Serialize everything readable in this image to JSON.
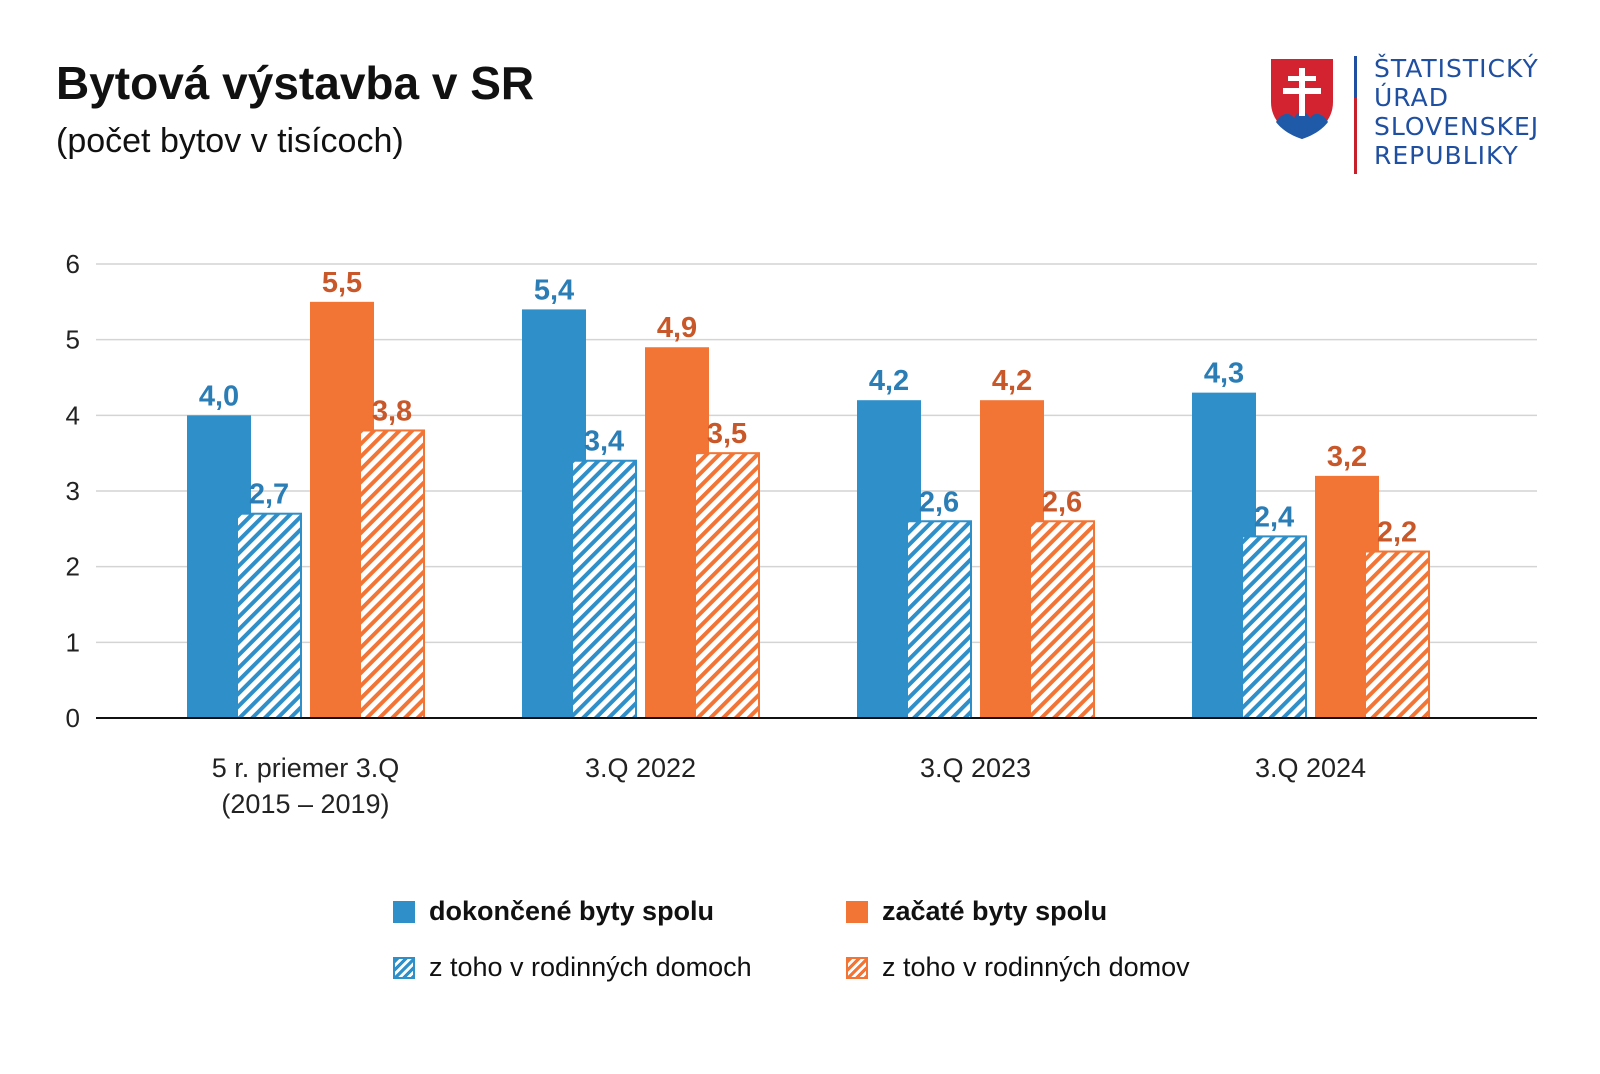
{
  "header": {
    "title": "Bytová výstavba v SR",
    "subtitle": "(počet bytov v tisícoch)"
  },
  "logo": {
    "lines": [
      "ŠTATISTICKÝ",
      "ÚRAD",
      "SLOVENSKEJ",
      "REPUBLIKY"
    ],
    "emblem": "slovak-coat-of-arms-icon"
  },
  "colors": {
    "blue": "#2e8fc9",
    "orange": "#f27535",
    "blue_label": "#2a7db5",
    "orange_label": "#c8582a"
  },
  "chart_data": {
    "type": "bar",
    "title": "Bytová výstavba v SR",
    "subtitle": "(počet bytov v tisícoch)",
    "categories": [
      [
        "5 r. priemer 3.Q",
        "(2015 – 2019)"
      ],
      [
        "3.Q 2022"
      ],
      [
        "3.Q 2023"
      ],
      [
        "3.Q 2024"
      ]
    ],
    "series": [
      {
        "name": "dokončené byty spolu",
        "values": [
          4.0,
          5.4,
          4.2,
          4.3
        ],
        "labels": [
          "4,0",
          "5,4",
          "4,2",
          "4,3"
        ],
        "color": "#2e8fc9",
        "pattern": "solid"
      },
      {
        "name": "z toho v rodinných domoch",
        "values": [
          2.7,
          3.4,
          2.6,
          2.4
        ],
        "labels": [
          "2,7",
          "3,4",
          "2,6",
          "2,4"
        ],
        "color": "#2e8fc9",
        "pattern": "hatched"
      },
      {
        "name": "začaté byty spolu",
        "values": [
          5.5,
          4.9,
          4.2,
          3.2
        ],
        "labels": [
          "5,5",
          "4,9",
          "4,2",
          "3,2"
        ],
        "color": "#f27535",
        "pattern": "solid"
      },
      {
        "name": "z toho v rodinných domov",
        "values": [
          3.8,
          3.5,
          2.6,
          2.2
        ],
        "labels": [
          "3,8",
          "3,5",
          "2,6",
          "2,2"
        ],
        "color": "#f27535",
        "pattern": "hatched"
      }
    ],
    "yticks": [
      "0",
      "1",
      "2",
      "3",
      "4",
      "5",
      "6"
    ],
    "ylim": [
      0,
      6
    ],
    "grid": true,
    "legend_position": "bottom"
  }
}
